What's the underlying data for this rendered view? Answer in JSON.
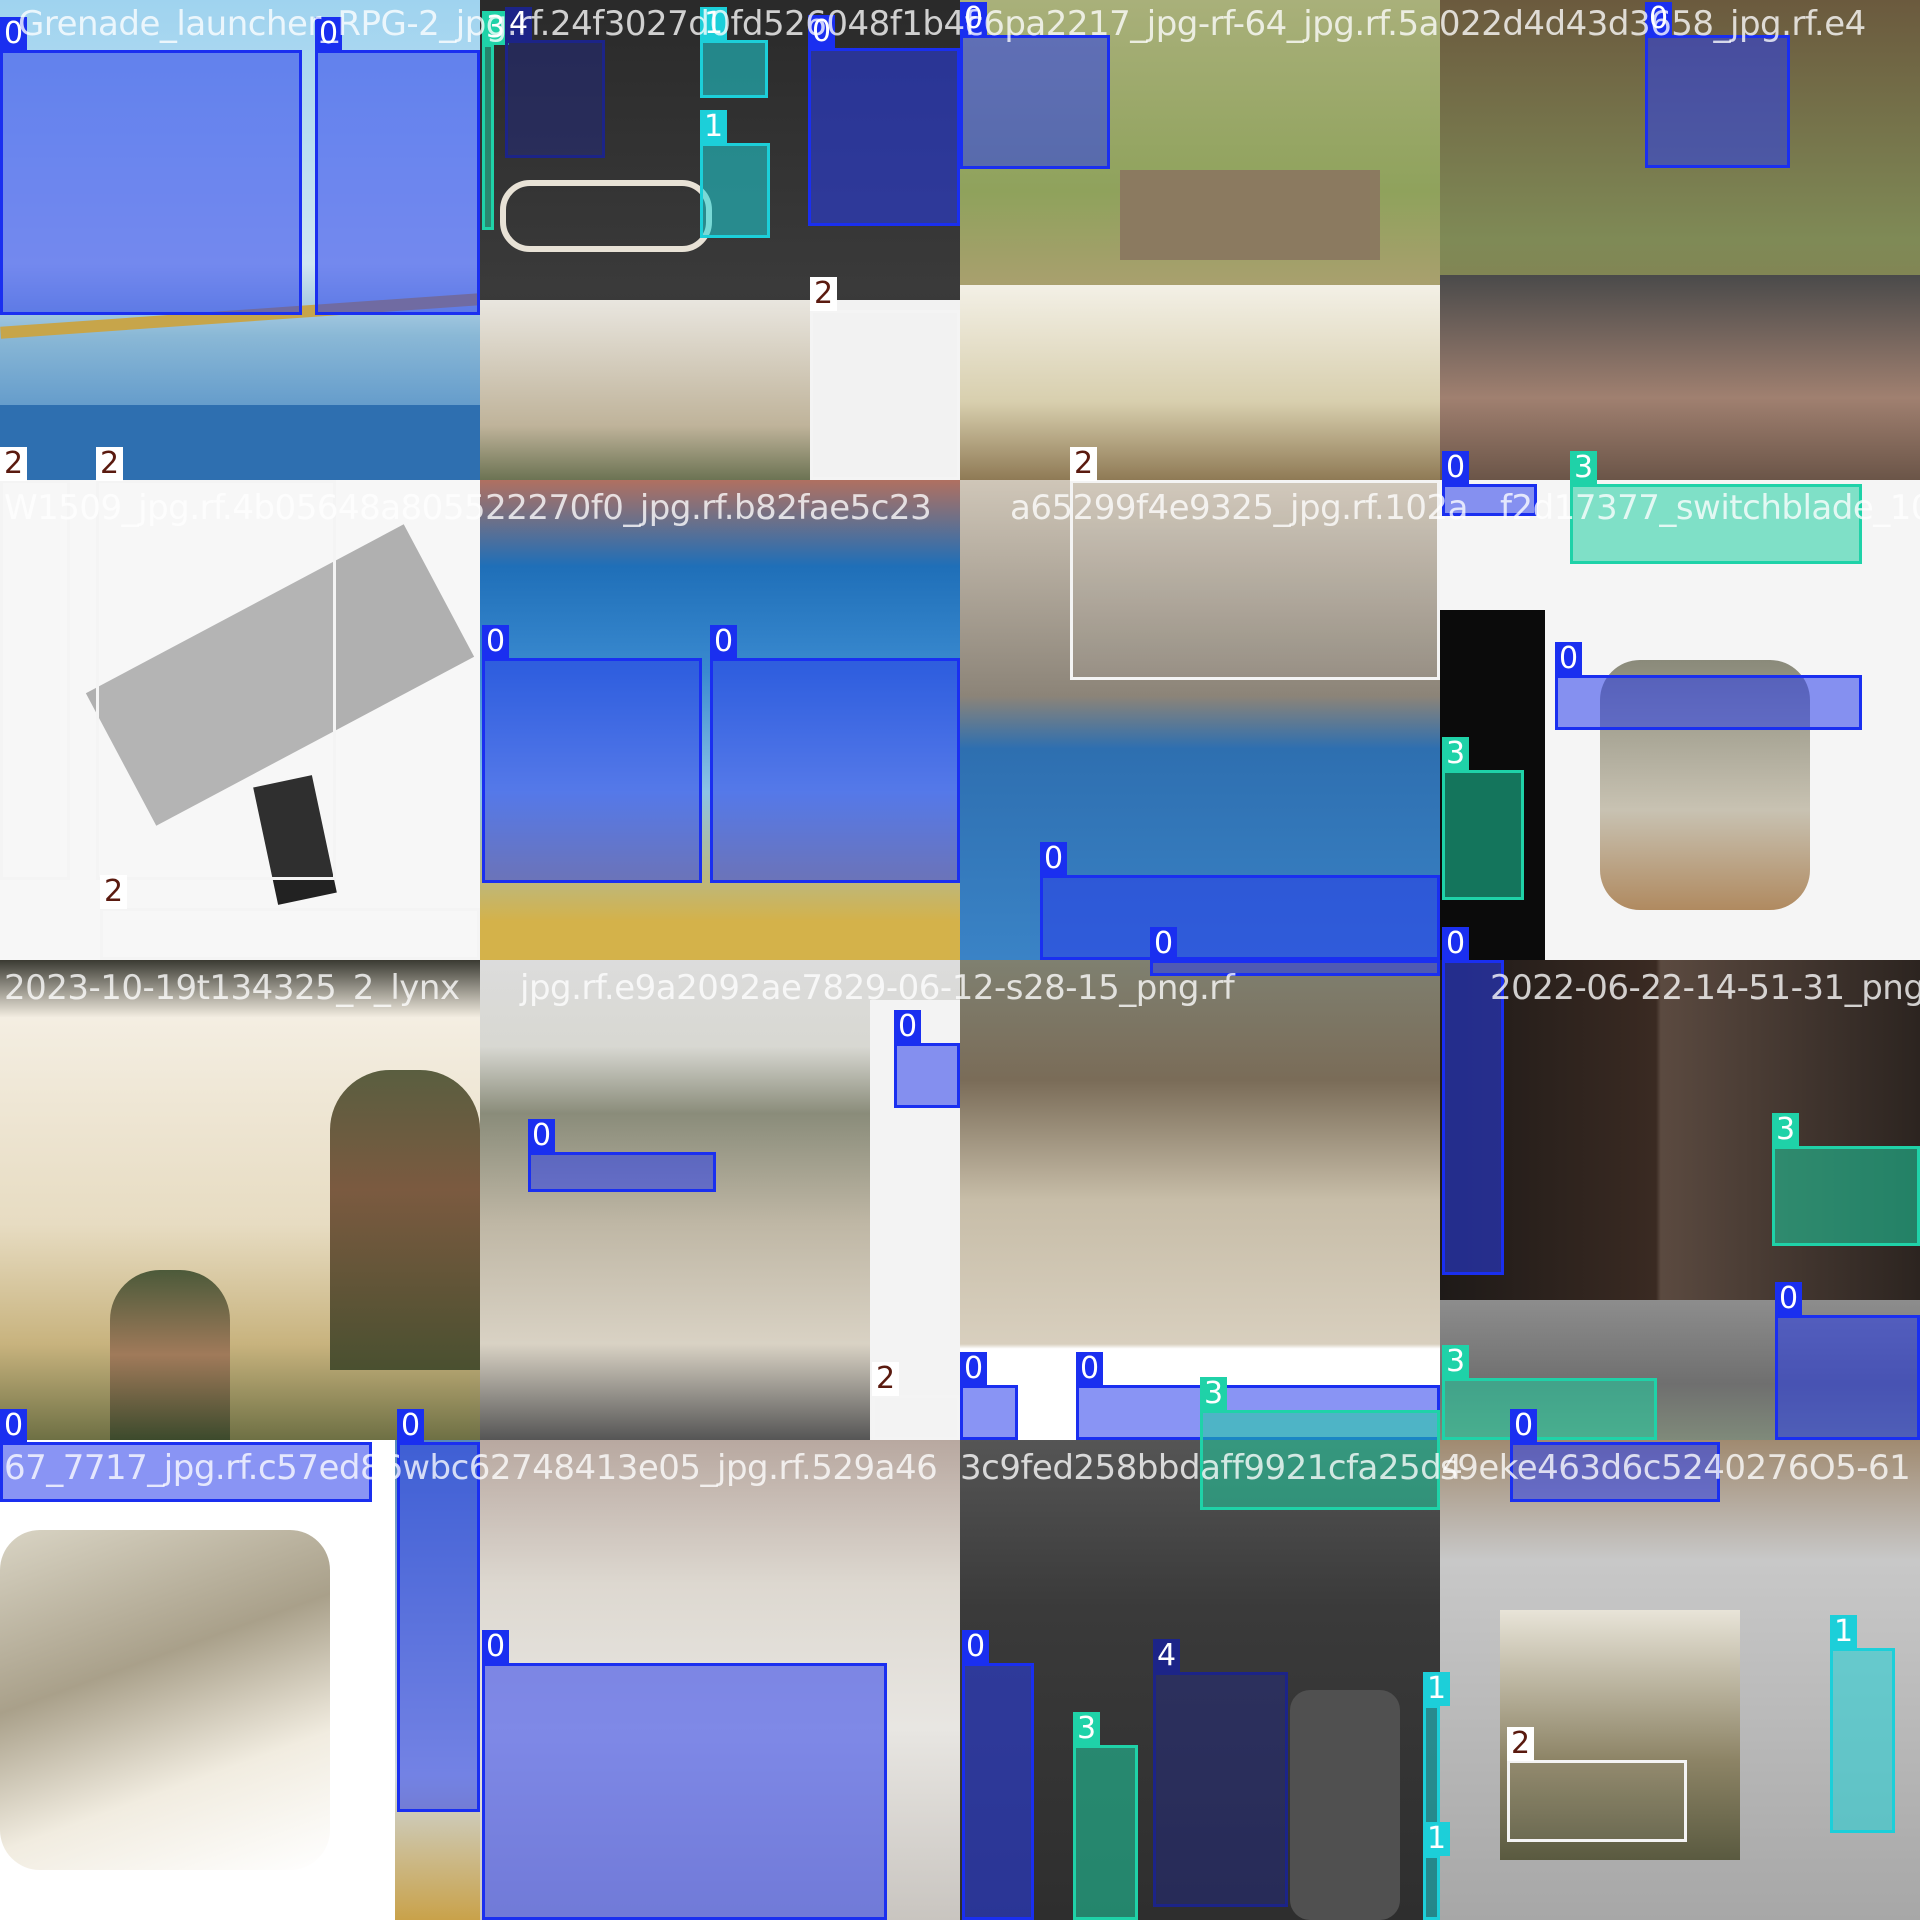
{
  "mosaic": {
    "title": "",
    "tiles": [
      {
        "label": "Grenade_launcher_RPG-2_jpg.rf.24f3027d0fd526048f1b4f",
        "detections": [
          {
            "cls": "0"
          },
          {
            "cls": "0"
          },
          {
            "cls": "3"
          },
          {
            "cls": "4"
          },
          {
            "cls": "1"
          },
          {
            "cls": "1"
          },
          {
            "cls": "0"
          },
          {
            "cls": "2"
          },
          {
            "cls": "2"
          },
          {
            "cls": "2"
          }
        ]
      },
      {
        "label": "c6pa2217_jpg-rf-64_jpg.rf.5a022d4d43d3658_jpg.rf.e4",
        "detections": [
          {
            "cls": "0"
          },
          {
            "cls": "0"
          },
          {
            "cls": "2"
          }
        ]
      },
      {
        "label": "",
        "detections": [
          {
            "cls": "0"
          },
          {
            "cls": "3"
          },
          {
            "cls": "0"
          },
          {
            "cls": "3"
          }
        ]
      },
      {
        "label": "W1509_jpg.rf.4b05648a805522270f0_jpg.rf.b82fae5c23",
        "detections": [
          {
            "cls": "2"
          },
          {
            "cls": "0"
          },
          {
            "cls": "0"
          },
          {
            "cls": "2"
          }
        ]
      },
      {
        "label": "a65299f4e9325_jpg.rf.102a",
        "detections": [
          {
            "cls": "0"
          },
          {
            "cls": "0"
          },
          {
            "cls": "0"
          }
        ]
      },
      {
        "label": "f2d17377_switchblade_10_j",
        "detections": []
      },
      {
        "label": "2023-10-19t134325_2_lynx",
        "detections": [
          {
            "cls": "0"
          },
          {
            "cls": "0"
          }
        ]
      },
      {
        "label": "jpg.rf.e9a2092ae7829-06-12-s28-15_png.rf",
        "detections": [
          {
            "cls": "0"
          },
          {
            "cls": "0"
          },
          {
            "cls": "2"
          }
        ]
      },
      {
        "label": "2022-06-22-14-51-31_png.r",
        "detections": [
          {
            "cls": "0"
          },
          {
            "cls": "0"
          },
          {
            "cls": "3"
          }
        ]
      },
      {
        "label": "",
        "detections": [
          {
            "cls": "0"
          },
          {
            "cls": "3"
          },
          {
            "cls": "0"
          },
          {
            "cls": "3"
          }
        ]
      },
      {
        "label": "67_7717_jpg.rf.c57ed86wbc62748413e05_jpg.rf.529a46",
        "detections": [
          {
            "cls": "0"
          }
        ]
      },
      {
        "label": "3c9fed258bbdaff9921cfa25d4",
        "detections": [
          {
            "cls": "0"
          },
          {
            "cls": "4"
          },
          {
            "cls": "3"
          },
          {
            "cls": "1"
          },
          {
            "cls": "1"
          }
        ]
      },
      {
        "label": "s9eke463d6c5240276O5-61",
        "detections": [
          {
            "cls": "2"
          },
          {
            "cls": "1"
          }
        ]
      }
    ]
  },
  "colors": {
    "class_0": "#1a2ff0",
    "class_1": "#1ccfd9",
    "class_2": "#f4f4f4",
    "class_3": "#1fd2a8",
    "class_4": "#1c2488"
  }
}
